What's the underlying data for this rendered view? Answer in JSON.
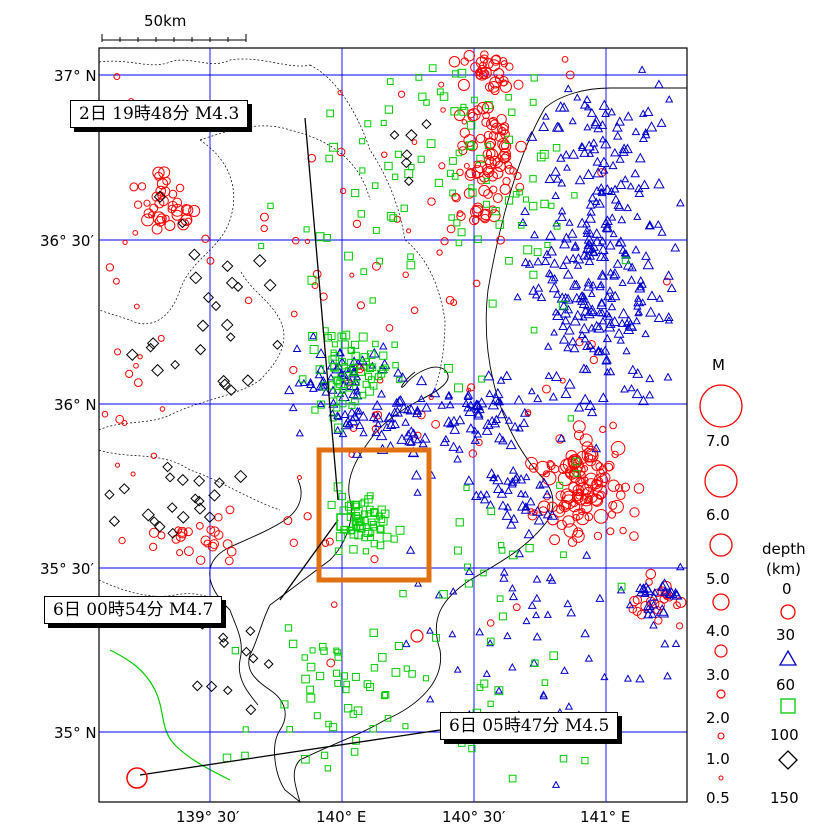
{
  "scale_bar": {
    "label": "50km"
  },
  "lat_labels": [
    "37° N",
    "36° 30′",
    "36° N",
    "35° 30′",
    "35° N"
  ],
  "lon_labels": [
    "139° 30′",
    "140° E",
    "140° 30′",
    "141° E"
  ],
  "callouts": [
    {
      "text": "2日 19時48分 M4.3"
    },
    {
      "text": "6日 00時54分 M4.7"
    },
    {
      "text": "6日 05時47分 M4.5"
    }
  ],
  "legend": {
    "magnitude_title": "M",
    "magnitudes": [
      "7.0",
      "6.0",
      "5.0",
      "4.0",
      "3.0",
      "2.0",
      "1.0",
      "0.5"
    ],
    "depth_title": "depth",
    "depth_unit": "(km)",
    "depths": [
      "0",
      "30",
      "60",
      "100",
      "150"
    ]
  },
  "colors": {
    "shallow": "#ff0000",
    "mid": "#0000cc",
    "deep": "#00cc00",
    "deepest": "#000000",
    "grid": "#0000ff",
    "highlight": "#e07010",
    "fault": "#00cc00"
  }
}
